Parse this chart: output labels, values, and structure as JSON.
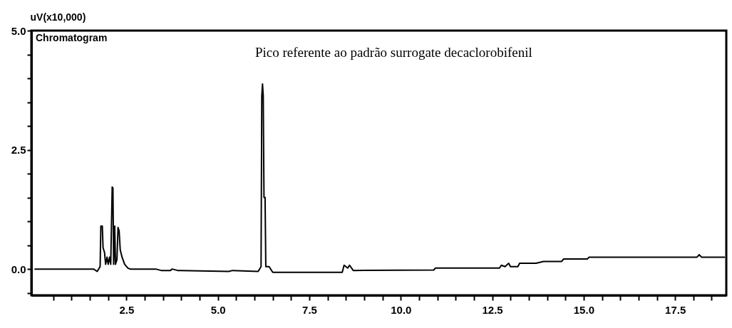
{
  "chart_data": {
    "type": "line",
    "title": "Chromatogram",
    "ylabel": "uV(x10,000)",
    "annotations": [
      "Pico referente ao padrão surrogate decaclorobifenil"
    ],
    "xlim": [
      -0.1,
      18.9
    ],
    "ylim": [
      -0.55,
      5.0
    ],
    "xticks": [
      {
        "value": 0.5,
        "label": null
      },
      {
        "value": 1,
        "label": null
      },
      {
        "value": 1.5,
        "label": null
      },
      {
        "value": 2,
        "label": null
      },
      2.5,
      {
        "value": 3,
        "label": null
      },
      {
        "value": 3.5,
        "label": null
      },
      {
        "value": 4,
        "label": null
      },
      {
        "value": 4.5,
        "label": null
      },
      {
        "value": 5,
        "label": "5.0"
      },
      {
        "value": 5.5,
        "label": null
      },
      {
        "value": 6,
        "label": null
      },
      {
        "value": 6.5,
        "label": null
      },
      {
        "value": 7,
        "label": null
      },
      7.5,
      {
        "value": 8,
        "label": null
      },
      {
        "value": 8.5,
        "label": null
      },
      {
        "value": 9,
        "label": null
      },
      {
        "value": 9.5,
        "label": null
      },
      {
        "value": 10,
        "label": "10.0"
      },
      {
        "value": 10.5,
        "label": null
      },
      {
        "value": 11,
        "label": null
      },
      {
        "value": 11.5,
        "label": null
      },
      {
        "value": 12,
        "label": null
      },
      12.5,
      {
        "value": 13,
        "label": null
      },
      {
        "value": 13.5,
        "label": null
      },
      {
        "value": 14,
        "label": null
      },
      {
        "value": 14.5,
        "label": null
      },
      {
        "value": 15,
        "label": "15.0"
      },
      {
        "value": 15.5,
        "label": null
      },
      {
        "value": 16,
        "label": null
      },
      {
        "value": 16.5,
        "label": null
      },
      {
        "value": 17,
        "label": null
      },
      17.5,
      {
        "value": 18,
        "label": null
      },
      {
        "value": 18.5,
        "label": null
      }
    ],
    "yticks": [
      {
        "value": -0.5,
        "label": null
      },
      {
        "value": 0,
        "label": "0.0"
      },
      {
        "value": 0.5,
        "label": null
      },
      {
        "value": 1,
        "label": null
      },
      {
        "value": 1.5,
        "label": null
      },
      {
        "value": 2,
        "label": null
      },
      2.5,
      {
        "value": 3,
        "label": null
      },
      {
        "value": 3.5,
        "label": null
      },
      {
        "value": 4,
        "label": null
      },
      {
        "value": 4.5,
        "label": null
      },
      {
        "value": 5,
        "label": "5.0"
      }
    ],
    "grid": false,
    "marker": "none",
    "line_style": "solid",
    "series": [
      {
        "color": "#000000",
        "x": [
          0,
          1.6,
          1.7,
          1.78,
          1.8,
          1.84,
          1.86,
          1.9,
          1.93,
          1.97,
          2.0,
          2.04,
          2.07,
          2.09,
          2.11,
          2.13,
          2.15,
          2.18,
          2.2,
          2.24,
          2.27,
          2.3,
          2.33,
          2.38,
          2.45,
          2.54,
          2.6,
          3.3,
          3.45,
          3.7,
          3.75,
          3.9,
          5.3,
          5.4,
          6.1,
          6.18,
          6.2,
          6.22,
          6.24,
          6.26,
          6.29,
          6.31,
          6.4,
          6.5,
          8.4,
          8.45,
          8.55,
          8.6,
          8.7,
          10.9,
          10.95,
          12.7,
          12.75,
          12.85,
          12.95,
          13.0,
          13.2,
          13.25,
          13.7,
          13.9,
          14.4,
          14.45,
          15.1,
          15.15,
          18.1,
          18.16,
          18.22,
          18.85
        ],
        "values": [
          0,
          0,
          -0.05,
          0.05,
          0.9,
          0.9,
          0.45,
          0.35,
          0.1,
          0.25,
          0.1,
          0.25,
          0.1,
          0.9,
          1.72,
          1.7,
          0.1,
          0.9,
          0.1,
          0.2,
          0.87,
          0.8,
          0.4,
          0.25,
          0.1,
          0.02,
          0,
          0,
          -0.03,
          -0.03,
          0,
          -0.03,
          -0.05,
          -0.03,
          -0.05,
          0.05,
          3.63,
          3.88,
          3.63,
          1.5,
          1.5,
          0.05,
          0.05,
          -0.07,
          -0.07,
          0.08,
          0.02,
          0.08,
          -0.03,
          -0.02,
          0.02,
          0.02,
          0.08,
          0.05,
          0.12,
          0.05,
          0.05,
          0.12,
          0.12,
          0.16,
          0.16,
          0.21,
          0.21,
          0.25,
          0.25,
          0.3,
          0.25,
          0.25
        ]
      }
    ]
  }
}
